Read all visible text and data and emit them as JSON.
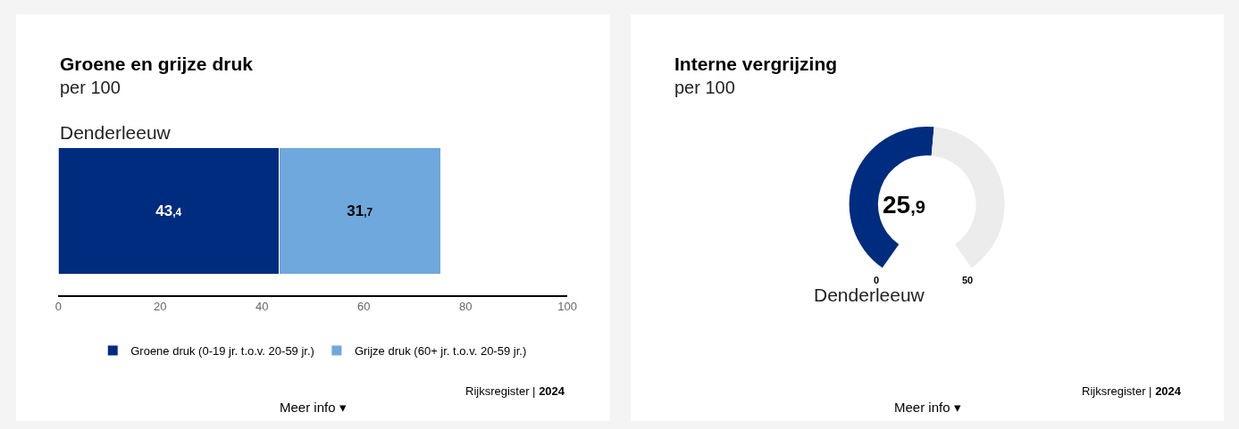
{
  "chart_data": [
    {
      "type": "bar",
      "orientation": "horizontal",
      "stacked": true,
      "title": "Groene en grijze druk",
      "subtitle": "per 100",
      "categories": [
        "Denderleeuw"
      ],
      "series": [
        {
          "name": "Groene druk (0-19 jr. t.o.v. 20-59 jr.)",
          "color": "#002c7f",
          "values": [
            43.4
          ],
          "value_labels": [
            "43,4"
          ]
        },
        {
          "name": "Grijze druk (60+ jr. t.o.v. 20-59 jr.)",
          "color": "#6fa8dc",
          "values": [
            31.7
          ],
          "value_labels": [
            "31,7"
          ]
        }
      ],
      "xlim": [
        0,
        100
      ],
      "xticks": [
        0,
        20,
        40,
        60,
        80,
        100
      ],
      "legend": "bottom",
      "annotations": [
        "Rijksregister | 2024",
        "Meer info ▾"
      ]
    },
    {
      "type": "donut",
      "title": "Interne vergrijzing",
      "subtitle": "per 100",
      "categories": [
        null,
        null
      ],
      "values": [
        25.9,
        24.1
      ],
      "value_labels": [
        "25,9",
        null
      ],
      "colors": [
        "#002c7f",
        "#ececec"
      ],
      "annotations": [
        "Rijksregister | 2024",
        "Meer info ▾",
        "0",
        "50",
        "Denderleeuw"
      ]
    }
  ]
}
